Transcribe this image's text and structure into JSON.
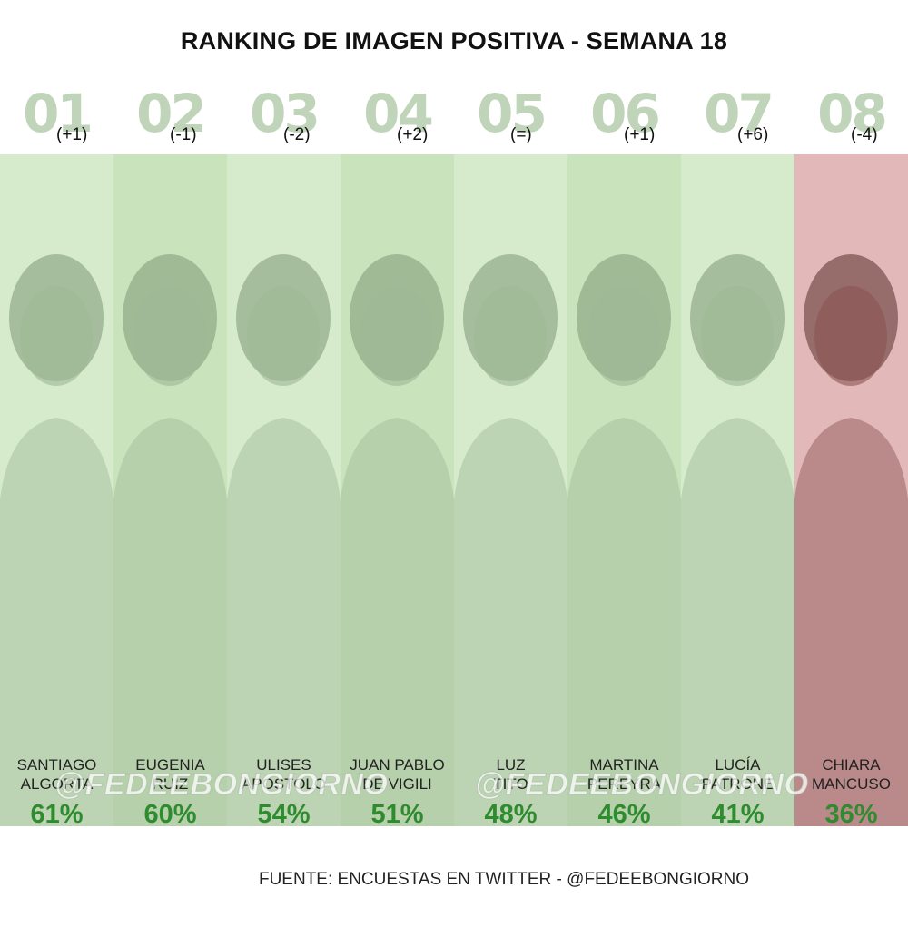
{
  "chart_data": {
    "type": "bar",
    "title": "RANKING DE IMAGEN POSITIVA - SEMANA 18",
    "categories": [
      "SANTIAGO ALGORTA",
      "EUGENIA RUIZ",
      "ULISES APOSTOLO",
      "JUAN PABLO DE VIGILI",
      "LUZ TITO",
      "MARTINA PEREYRA",
      "LUCÍA PATRONE",
      "CHIARA MANCUSO"
    ],
    "values": [
      61,
      60,
      54,
      51,
      48,
      46,
      41,
      36
    ],
    "unit": "%"
  },
  "header": {
    "title": "RANKING DE IMAGEN POSITIVA - SEMANA 18"
  },
  "entries": [
    {
      "rank": "01",
      "change": "(+1)",
      "name_line1": "SANTIAGO",
      "name_line2": "ALGORTA",
      "percent": "61%"
    },
    {
      "rank": "02",
      "change": "(-1)",
      "name_line1": "EUGENIA",
      "name_line2": "RUIZ",
      "percent": "60%"
    },
    {
      "rank": "03",
      "change": "(-2)",
      "name_line1": "ULISES",
      "name_line2": "APOSTOLO",
      "percent": "54%"
    },
    {
      "rank": "04",
      "change": "(+2)",
      "name_line1": "JUAN PABLO",
      "name_line2": "DE VIGILI",
      "percent": "51%"
    },
    {
      "rank": "05",
      "change": "(=)",
      "name_line1": "LUZ",
      "name_line2": "TITO",
      "percent": "48%"
    },
    {
      "rank": "06",
      "change": "(+1)",
      "name_line1": "MARTINA",
      "name_line2": "PEREYRA",
      "percent": "46%"
    },
    {
      "rank": "07",
      "change": "(+6)",
      "name_line1": "LUCÍA",
      "name_line2": "PATRONE",
      "percent": "41%"
    },
    {
      "rank": "08",
      "change": "(-4)",
      "name_line1": "CHIARA",
      "name_line2": "MANCUSO",
      "percent": "36%"
    }
  ],
  "watermark": "@FEDEEBONGIORNO",
  "footer": {
    "source": "FUENTE: ENCUESTAS EN TWITTER - @FEDEEBONGIORNO"
  },
  "colors": {
    "photo_green": "#d6ebcc",
    "photo_red": "#e2b9b8",
    "percent_green": "#2e8b2e",
    "rank_number": "#bfd4b8"
  }
}
